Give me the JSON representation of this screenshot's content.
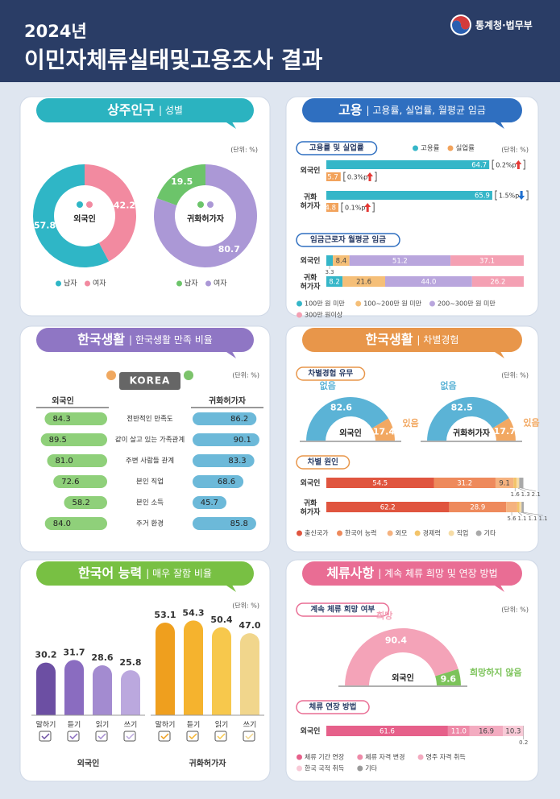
{
  "header": {
    "year": "2024년",
    "title": "이민자체류실태및고용조사 결과",
    "logo": "통계청·법무부"
  },
  "panels": [
    {
      "title": "상주인구",
      "subtitle": "| 성별",
      "unit": "(단위: %)",
      "color": "#2bb3c0"
    },
    {
      "title": "고용",
      "subtitle": "| 고용률, 실업률, 월평균 임금",
      "unit": "(단위: %)",
      "color": "#2f6fc0"
    },
    {
      "title": "한국생활",
      "subtitle": "| 한국생활 만족 비율",
      "unit": "(단위: %)",
      "color": "#8f76c4"
    },
    {
      "title": "한국생활",
      "subtitle": "| 차별경험",
      "unit": "(단위: %)",
      "color": "#e8964a"
    },
    {
      "title": "한국어 능력",
      "subtitle": "| 매우 잘함 비율",
      "unit": "(단위: %)",
      "color": "#78c043"
    },
    {
      "title": "체류사항",
      "subtitle": "| 계속 체류 희망 및 연장 방법",
      "unit": "(단위: %)",
      "color": "#e96d94"
    }
  ],
  "chart_data": [
    {
      "type": "donut",
      "label": "외국인",
      "categories": [
        "남자",
        "여자"
      ],
      "values": [
        57.8,
        42.2
      ],
      "colors": [
        "#2fb6c6",
        "#f28aa0"
      ]
    },
    {
      "type": "donut",
      "label": "귀화허가자",
      "categories": [
        "남자",
        "여자"
      ],
      "values": [
        19.5,
        80.7
      ],
      "colors": [
        "#6cc46a",
        "#ab98d6"
      ]
    },
    {
      "type": "hbar",
      "title": "고용률 및 실업률",
      "categories": [
        "외국인",
        "귀화 허가자"
      ],
      "xlim": [
        0,
        72
      ],
      "legend": "top-right",
      "series": [
        {
          "name": "고용률",
          "color": "#35b6c8",
          "values": [
            64.7,
            65.9
          ],
          "changes": [
            {
              "label": "0.2%p",
              "direction": "up"
            },
            {
              "label": "1.5%p",
              "direction": "down"
            }
          ]
        },
        {
          "name": "실업률",
          "color": "#f2a35c",
          "values": [
            5.7,
            4.8
          ],
          "changes": [
            {
              "label": "0.3%p",
              "direction": "up"
            },
            {
              "label": "0.1%p",
              "direction": "up"
            }
          ]
        }
      ]
    },
    {
      "type": "stackedbar",
      "title": "임금근로자 월평균 임금",
      "categories": [
        "외국인",
        "귀화 허가자"
      ],
      "xlim": [
        0,
        100
      ],
      "series": [
        {
          "name": "100만 원 미만",
          "color": "#35b6c8",
          "values": [
            3.3,
            8.2
          ]
        },
        {
          "name": "100~200만 원 미만",
          "color": "#f5bf78",
          "values": [
            8.4,
            21.6
          ]
        },
        {
          "name": "200~300만 원 미만",
          "color": "#b9a6dd",
          "values": [
            51.2,
            44.0
          ],
          "value_labels": [
            "51.2",
            "44.0"
          ]
        },
        {
          "name": "300만 원이상",
          "color": "#f4a0b3",
          "values": [
            37.1,
            26.2
          ]
        }
      ]
    },
    {
      "type": "butterfly",
      "badge": "KOREA",
      "categories": [
        "전반적인 만족도",
        "같이 살고 있는 가족관계",
        "주변 사람들 관계",
        "본인 직업",
        "본인 소득",
        "주거 환경"
      ],
      "xlim": [
        0,
        100
      ],
      "series": [
        {
          "name": "외국인",
          "color": "#8fd07a",
          "values": [
            84.3,
            89.5,
            81.0,
            72.6,
            58.2,
            84.0
          ],
          "value_labels": [
            "84.3",
            "89.5",
            "81.0",
            "72.6",
            "58.2",
            "84.0"
          ]
        },
        {
          "name": "귀화허가자",
          "color": "#6cb9d9",
          "values": [
            86.2,
            90.1,
            83.3,
            68.6,
            45.7,
            85.8
          ]
        }
      ]
    },
    {
      "type": "halfdonut",
      "title": "차별경험 유무",
      "label": "외국인",
      "categories": [
        "없음",
        "있음"
      ],
      "values": [
        82.6,
        17.4
      ],
      "colors": [
        "#5bb3d6",
        "#f2a862"
      ]
    },
    {
      "type": "halfdonut",
      "label": "귀화허가자",
      "categories": [
        "없음",
        "있음"
      ],
      "values": [
        82.5,
        17.7
      ],
      "colors": [
        "#5bb3d6",
        "#f2a862"
      ]
    },
    {
      "type": "stackedbar",
      "title": "차별 원인",
      "categories": [
        "외국인",
        "귀화 허가자"
      ],
      "xlim": [
        0,
        100
      ],
      "series": [
        {
          "name": "출신국가",
          "color": "#e0553f",
          "values": [
            54.5,
            62.2
          ]
        },
        {
          "name": "한국어 능력",
          "color": "#ee8a5c",
          "values": [
            31.2,
            28.9
          ]
        },
        {
          "name": "외모",
          "color": "#f5b27f",
          "values": [
            9.1,
            5.6
          ]
        },
        {
          "name": "경제력",
          "color": "#f3c46a",
          "values": [
            1.6,
            1.1
          ]
        },
        {
          "name": "직업",
          "color": "#f6dca6",
          "values": [
            1.3,
            1.1
          ]
        },
        {
          "name": "기타",
          "color": "#a9a9a9",
          "values": [
            2.1,
            1.1
          ]
        }
      ]
    },
    {
      "type": "column",
      "label": "외국인",
      "categories": [
        "말하기",
        "듣기",
        "읽기",
        "쓰기"
      ],
      "values": [
        30.2,
        31.7,
        28.6,
        25.8
      ],
      "colors": [
        "#6c4fa3",
        "#8a6cc0",
        "#a38bd0",
        "#bba8de"
      ],
      "ylim": [
        0,
        60
      ]
    },
    {
      "type": "column",
      "label": "귀화허가자",
      "categories": [
        "말하기",
        "듣기",
        "읽기",
        "쓰기"
      ],
      "values": [
        53.1,
        54.3,
        50.4,
        47.0
      ],
      "value_labels": [
        "53.1",
        "54.3",
        "50.4",
        "47.0"
      ],
      "colors": [
        "#ef9f1e",
        "#f5b32e",
        "#f7c84c",
        "#f1d68c"
      ],
      "ylim": [
        0,
        60
      ]
    },
    {
      "type": "halfdonut",
      "title": "계속 체류 희망 여부",
      "label": "외국인",
      "categories": [
        "희망",
        "희망하지 않음"
      ],
      "values": [
        90.4,
        9.6
      ],
      "colors": [
        "#f4a3b8",
        "#7cc35a"
      ]
    },
    {
      "type": "stackedbar",
      "title": "체류 연장 방법",
      "categories": [
        "외국인"
      ],
      "xlim": [
        0,
        100
      ],
      "series": [
        {
          "name": "체류 기간 연장",
          "color": "#e6608a",
          "values": [
            61.6
          ]
        },
        {
          "name": "체류 자격 변경",
          "color": "#ee8aa8",
          "values": [
            11.0
          ],
          "value_labels": [
            "11.0"
          ]
        },
        {
          "name": "영주 자격 취득",
          "color": "#f3abc0",
          "values": [
            16.9
          ]
        },
        {
          "name": "한국 국적 취득",
          "color": "#f8cad7",
          "values": [
            10.3
          ]
        },
        {
          "name": "기타",
          "color": "#9a9a9a",
          "values": [
            0.2
          ]
        }
      ]
    }
  ]
}
